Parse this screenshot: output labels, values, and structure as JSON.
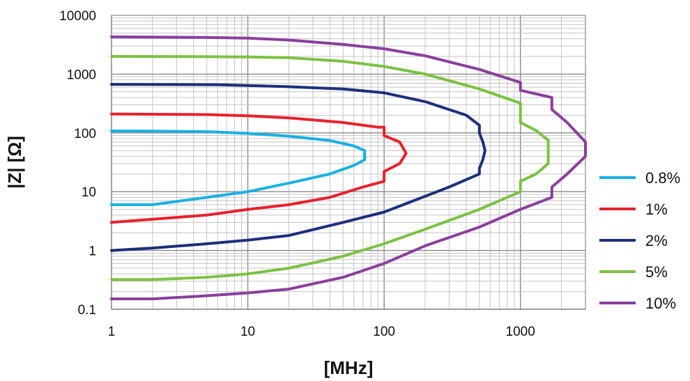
{
  "chart_data": {
    "type": "line",
    "title": "",
    "xlabel": "[MHz]",
    "ylabel": "|Z| [Ω]",
    "xscale": "log",
    "yscale": "log",
    "xlim": [
      1,
      3000
    ],
    "ylim": [
      0.1,
      10000
    ],
    "grid": true,
    "legend_position": "right",
    "x_tick_labels": [
      "1",
      "10",
      "100",
      "1000"
    ],
    "y_tick_labels": [
      "0.1",
      "1",
      "10",
      "100",
      "1000",
      "10000"
    ],
    "series": [
      {
        "name": "0.8%",
        "color": "#1ab0e3",
        "x": [
          1,
          2,
          5,
          10,
          20,
          40,
          60,
          72,
          72,
          60,
          40,
          20,
          10,
          5,
          2,
          1
        ],
        "y": [
          108,
          107,
          105,
          98,
          88,
          74,
          60,
          50,
          35,
          28,
          20,
          14,
          10,
          8,
          6,
          6
        ]
      },
      {
        "name": "1%",
        "color": "#e8212d",
        "x": [
          1,
          5,
          10,
          20,
          50,
          90,
          100,
          100,
          130,
          145,
          130,
          100,
          100,
          70,
          40,
          20,
          10,
          5,
          1
        ],
        "y": [
          210,
          205,
          195,
          180,
          150,
          125,
          125,
          90,
          70,
          45,
          30,
          22,
          15,
          12,
          8,
          6,
          5,
          4,
          3
        ]
      },
      {
        "name": "2%",
        "color": "#1d2f7b",
        "x": [
          1,
          6,
          10,
          20,
          50,
          100,
          200,
          400,
          500,
          500,
          530,
          550,
          530,
          500,
          500,
          300,
          100,
          50,
          20,
          10,
          5,
          2,
          1
        ],
        "y": [
          670,
          660,
          640,
          610,
          560,
          480,
          340,
          200,
          135,
          100,
          70,
          50,
          35,
          25,
          20,
          12,
          4.5,
          3,
          1.8,
          1.5,
          1.3,
          1.1,
          1
        ]
      },
      {
        "name": "5%",
        "color": "#7cc143",
        "x": [
          1,
          5,
          10,
          20,
          50,
          100,
          200,
          500,
          1000,
          1000,
          1300,
          1600,
          1600,
          1300,
          1000,
          1000,
          500,
          200,
          100,
          50,
          20,
          10,
          5,
          2,
          1
        ],
        "y": [
          2000,
          1980,
          1960,
          1900,
          1650,
          1350,
          1000,
          560,
          320,
          150,
          110,
          75,
          30,
          20,
          15,
          10,
          5,
          2.3,
          1.3,
          0.8,
          0.5,
          0.4,
          0.35,
          0.32,
          0.32
        ]
      },
      {
        "name": "10%",
        "color": "#8a3f9d",
        "x": [
          1,
          5,
          10,
          20,
          50,
          100,
          200,
          500,
          1000,
          1000,
          1700,
          1700,
          2200,
          3000,
          3000,
          2200,
          1700,
          1700,
          1000,
          500,
          200,
          100,
          50,
          20,
          10,
          5,
          2,
          1
        ],
        "y": [
          4300,
          4200,
          4100,
          3800,
          3200,
          2700,
          2050,
          1200,
          720,
          530,
          400,
          250,
          150,
          70,
          40,
          20,
          12,
          8,
          5,
          2.5,
          1.2,
          0.6,
          0.35,
          0.22,
          0.19,
          0.17,
          0.15,
          0.15
        ]
      }
    ]
  }
}
